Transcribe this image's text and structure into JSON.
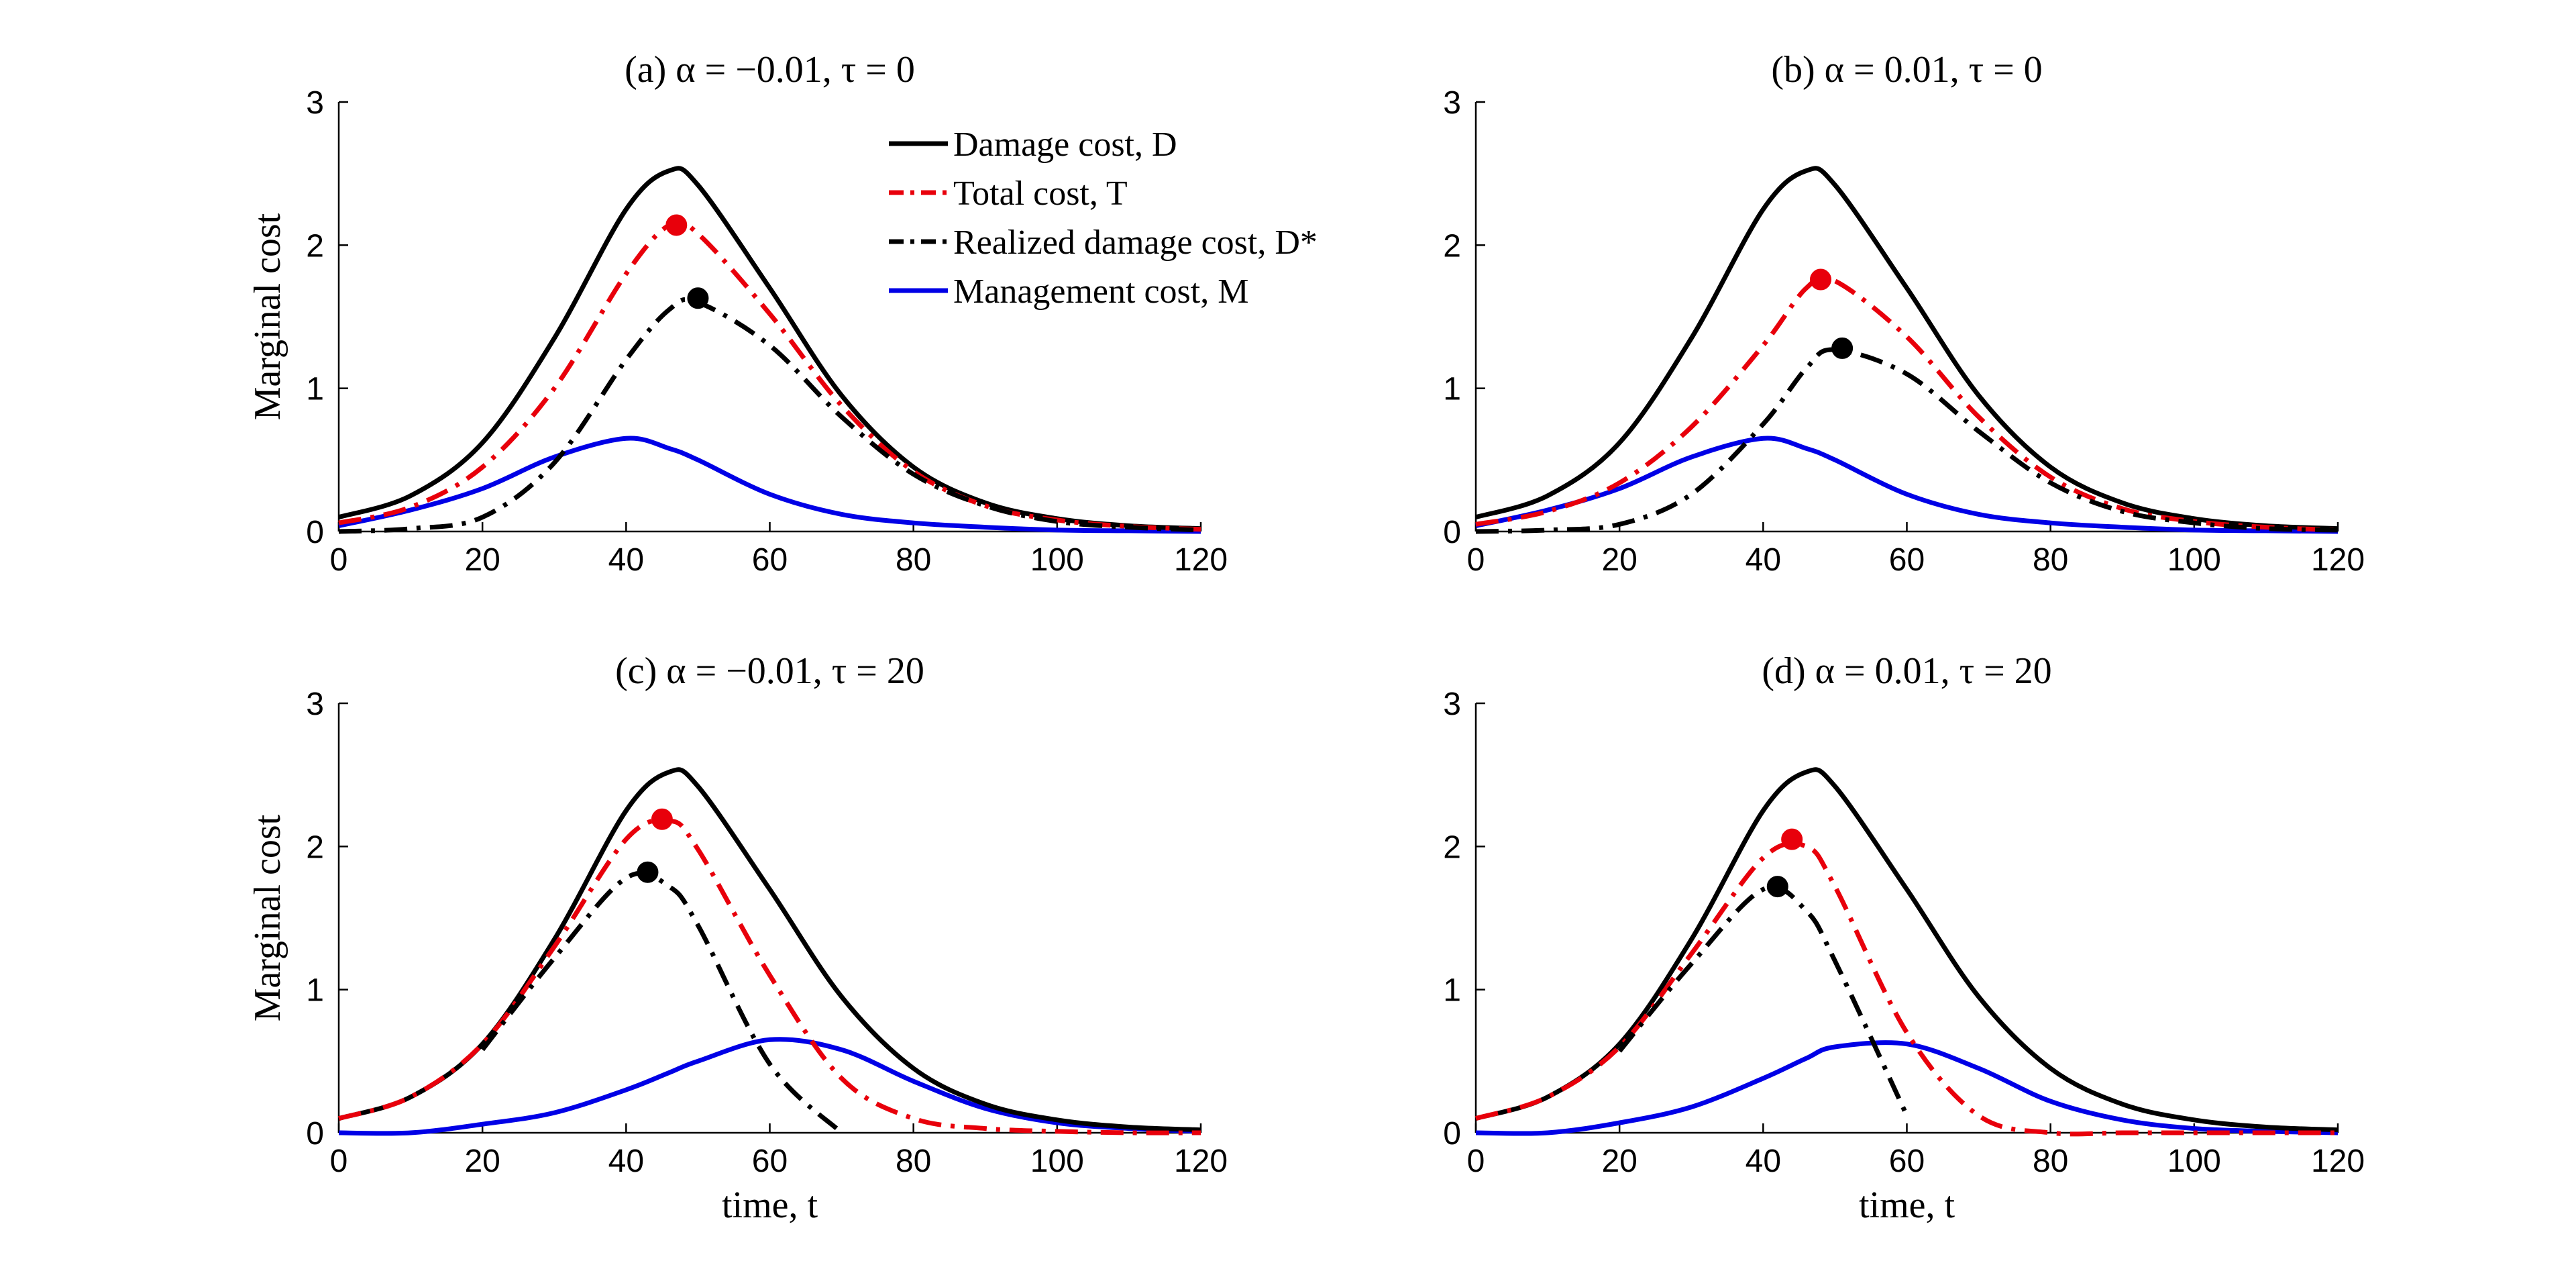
{
  "figure": {
    "legend": [
      {
        "key": "D",
        "label": "Damage cost, D",
        "color": "#000000",
        "dash": "solid"
      },
      {
        "key": "T",
        "label": "Total cost, T",
        "color": "#e8000b",
        "dash": "dashdot"
      },
      {
        "key": "Dstar",
        "label": "Realized damage cost, D*",
        "color": "#000000",
        "dash": "dashdot"
      },
      {
        "key": "M",
        "label": "Management cost, M",
        "color": "#0000e6",
        "dash": "solid"
      }
    ]
  },
  "chart_data": [
    {
      "type": "line",
      "title": "(a) α = −0.01, τ = 0",
      "ylabel": "Marginal cost",
      "xlabel": "",
      "xlim": [
        0,
        120
      ],
      "ylim": [
        0,
        3
      ],
      "xticks": [
        0,
        20,
        40,
        60,
        80,
        100,
        120
      ],
      "yticks": [
        0,
        1,
        2,
        3
      ],
      "legend_position": "top-right",
      "x": [
        0,
        10,
        20,
        30,
        40,
        46,
        50,
        60,
        70,
        80,
        90,
        100,
        110,
        120
      ],
      "series": [
        {
          "key": "D",
          "values": [
            0.1,
            0.25,
            0.62,
            1.35,
            2.25,
            2.52,
            2.42,
            1.7,
            0.95,
            0.45,
            0.2,
            0.09,
            0.04,
            0.02
          ]
        },
        {
          "key": "T",
          "values": [
            0.06,
            0.17,
            0.45,
            1.0,
            1.8,
            2.14,
            2.08,
            1.52,
            0.88,
            0.42,
            0.18,
            0.08,
            0.035,
            0.015
          ]
        },
        {
          "key": "Dstar",
          "values": [
            0.0,
            0.02,
            0.1,
            0.48,
            1.2,
            1.55,
            1.6,
            1.3,
            0.8,
            0.4,
            0.18,
            0.07,
            0.03,
            0.01
          ]
        },
        {
          "key": "M",
          "values": [
            0.04,
            0.15,
            0.3,
            0.52,
            0.65,
            0.58,
            0.5,
            0.26,
            0.12,
            0.06,
            0.03,
            0.01,
            0.005,
            0.0
          ]
        }
      ],
      "markers": [
        {
          "key": "T",
          "x": 47,
          "y": 2.14
        },
        {
          "key": "Dstar",
          "x": 50,
          "y": 1.63
        }
      ]
    },
    {
      "type": "line",
      "title": "(b) α = 0.01, τ = 0",
      "ylabel": "",
      "xlabel": "",
      "xlim": [
        0,
        120
      ],
      "ylim": [
        0,
        3
      ],
      "xticks": [
        0,
        20,
        40,
        60,
        80,
        100,
        120
      ],
      "yticks": [
        0,
        1,
        2,
        3
      ],
      "x": [
        0,
        10,
        20,
        30,
        40,
        46,
        50,
        60,
        70,
        80,
        90,
        100,
        110,
        120
      ],
      "series": [
        {
          "key": "D",
          "values": [
            0.1,
            0.25,
            0.62,
            1.35,
            2.25,
            2.52,
            2.42,
            1.7,
            0.95,
            0.45,
            0.2,
            0.09,
            0.04,
            0.02
          ]
        },
        {
          "key": "T",
          "values": [
            0.05,
            0.14,
            0.34,
            0.73,
            1.3,
            1.7,
            1.75,
            1.36,
            0.8,
            0.38,
            0.16,
            0.07,
            0.03,
            0.01
          ]
        },
        {
          "key": "Dstar",
          "values": [
            0.0,
            0.01,
            0.05,
            0.26,
            0.75,
            1.14,
            1.27,
            1.1,
            0.7,
            0.34,
            0.14,
            0.06,
            0.02,
            0.01
          ]
        },
        {
          "key": "M",
          "values": [
            0.04,
            0.15,
            0.3,
            0.52,
            0.65,
            0.58,
            0.5,
            0.26,
            0.12,
            0.06,
            0.03,
            0.01,
            0.005,
            0.0
          ]
        }
      ],
      "markers": [
        {
          "key": "T",
          "x": 48,
          "y": 1.76
        },
        {
          "key": "Dstar",
          "x": 51,
          "y": 1.28
        }
      ]
    },
    {
      "type": "line",
      "title": "(c) α = −0.01, τ = 20",
      "ylabel": "Marginal cost",
      "xlabel": "time, t",
      "xlim": [
        0,
        120
      ],
      "ylim": [
        0,
        3
      ],
      "xticks": [
        0,
        20,
        40,
        60,
        80,
        100,
        120
      ],
      "yticks": [
        0,
        1,
        2,
        3
      ],
      "x": [
        0,
        10,
        20,
        30,
        40,
        46,
        50,
        60,
        70,
        80,
        90,
        100,
        110,
        120
      ],
      "series": [
        {
          "key": "D",
          "values": [
            0.1,
            0.25,
            0.62,
            1.35,
            2.25,
            2.52,
            2.42,
            1.7,
            0.95,
            0.45,
            0.2,
            0.09,
            0.04,
            0.02
          ]
        },
        {
          "key": "T",
          "values": [
            0.1,
            0.25,
            0.62,
            1.3,
            2.05,
            2.18,
            1.98,
            1.1,
            0.38,
            0.1,
            0.03,
            0.01,
            0.0,
            0.0
          ]
        },
        {
          "key": "Dstar",
          "start": 20,
          "values": [
            null,
            null,
            0.58,
            1.22,
            1.78,
            1.72,
            1.45,
            0.48,
            0.0,
            null,
            null,
            null,
            null,
            null
          ]
        },
        {
          "key": "M",
          "values": [
            0.0,
            0.0,
            0.06,
            0.14,
            0.3,
            0.42,
            0.5,
            0.65,
            0.58,
            0.36,
            0.17,
            0.07,
            0.03,
            0.01
          ]
        }
      ],
      "markers": [
        {
          "key": "T",
          "x": 45,
          "y": 2.19
        },
        {
          "key": "Dstar",
          "x": 43,
          "y": 1.82
        }
      ]
    },
    {
      "type": "line",
      "title": "(d) α = 0.01, τ = 20",
      "ylabel": "",
      "xlabel": "time, t",
      "xlim": [
        0,
        120
      ],
      "ylim": [
        0,
        3
      ],
      "xticks": [
        0,
        20,
        40,
        60,
        80,
        100,
        120
      ],
      "yticks": [
        0,
        1,
        2,
        3
      ],
      "x": [
        0,
        10,
        20,
        30,
        40,
        46,
        50,
        60,
        70,
        80,
        90,
        100,
        110,
        120
      ],
      "series": [
        {
          "key": "D",
          "values": [
            0.1,
            0.25,
            0.62,
            1.35,
            2.25,
            2.52,
            2.42,
            1.7,
            0.95,
            0.45,
            0.2,
            0.09,
            0.04,
            0.02
          ]
        },
        {
          "key": "T",
          "values": [
            0.1,
            0.25,
            0.6,
            1.25,
            1.92,
            2.0,
            1.72,
            0.7,
            0.12,
            0.0,
            0.0,
            0.0,
            0.0,
            0.0
          ]
        },
        {
          "key": "Dstar",
          "values": [
            null,
            null,
            0.57,
            1.18,
            1.7,
            1.55,
            1.2,
            0.12,
            null,
            null,
            null,
            null,
            null,
            null
          ]
        },
        {
          "key": "M",
          "values": [
            0.0,
            0.0,
            0.07,
            0.18,
            0.38,
            0.52,
            0.6,
            0.62,
            0.45,
            0.22,
            0.09,
            0.03,
            0.01,
            0.0
          ]
        }
      ],
      "markers": [
        {
          "key": "T",
          "x": 44,
          "y": 2.05
        },
        {
          "key": "Dstar",
          "x": 42,
          "y": 1.72
        }
      ]
    }
  ]
}
